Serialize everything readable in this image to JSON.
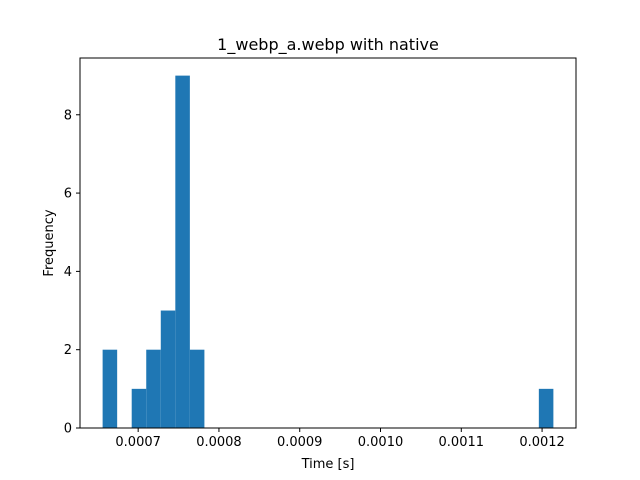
{
  "chart_data": {
    "type": "bar",
    "title": "1_webp_a.webp with native",
    "xlabel": "Time [s]",
    "ylabel": "Frequency",
    "bin_edges": [
      0.000656,
      0.000674,
      0.000692,
      0.00071,
      0.000728,
      0.000746,
      0.000764,
      0.000782,
      0.0008,
      0.000818,
      0.000836,
      0.000854,
      0.000872,
      0.00089,
      0.000908,
      0.000926,
      0.000944,
      0.000962,
      0.00098,
      0.000998,
      0.001016,
      0.001034,
      0.001052,
      0.00107,
      0.001088,
      0.001106,
      0.001124,
      0.001142,
      0.00116,
      0.001178,
      0.001196,
      0.001214
    ],
    "values": [
      2,
      0,
      1,
      2,
      3,
      9,
      2,
      0,
      0,
      0,
      0,
      0,
      0,
      0,
      0,
      0,
      0,
      0,
      0,
      0,
      0,
      0,
      0,
      0,
      0,
      0,
      0,
      0,
      0,
      0,
      1
    ],
    "xlim": [
      0.000628,
      0.001242
    ],
    "ylim": [
      0,
      9.45
    ],
    "xticks": [
      0.0007,
      0.0008,
      0.0009,
      0.001,
      0.0011,
      0.0012
    ],
    "xtick_labels": [
      "0.0007",
      "0.0008",
      "0.0009",
      "0.0010",
      "0.0011",
      "0.0012"
    ],
    "yticks": [
      0,
      2,
      4,
      6,
      8
    ],
    "ytick_labels": [
      "0",
      "2",
      "4",
      "6",
      "8"
    ],
    "bar_color": "#1f77b4",
    "grid": false,
    "legend": "none"
  }
}
